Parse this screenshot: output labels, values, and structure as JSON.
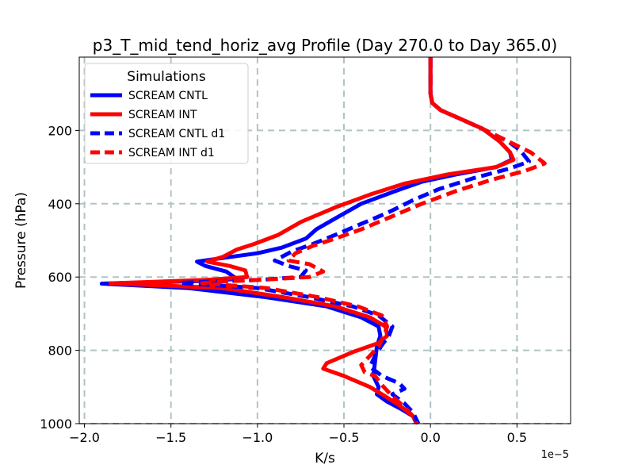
{
  "chart_data": {
    "type": "line",
    "title": "p3_T_mid_tend_horiz_avg Profile (Day 270.0 to Day 365.0)",
    "xlabel": "K/s",
    "ylabel": "Pressure (hPa)",
    "x_offset_label": "1e−5",
    "xlim": [
      -2.03,
      0.81
    ],
    "ylim": [
      1000,
      0
    ],
    "xticks": [
      -2.0,
      -1.5,
      -1.0,
      -0.5,
      0.0,
      0.5
    ],
    "xtick_labels": [
      "−2.0",
      "−1.5",
      "−1.0",
      "−0.5",
      "0.0",
      "0.5"
    ],
    "yticks": [
      200,
      400,
      600,
      800,
      1000
    ],
    "ytick_labels": [
      "200",
      "400",
      "600",
      "800",
      "1000"
    ],
    "grid": true,
    "legend": {
      "title": "Simulations",
      "location": "top-left",
      "entries": [
        "SCREAM CNTL",
        "SCREAM INT",
        "SCREAM CNTL d1",
        "SCREAM INT d1"
      ]
    },
    "series": [
      {
        "name": "SCREAM CNTL",
        "color": "#0000ff",
        "style": "solid",
        "points": [
          [
            0,
            0
          ],
          [
            0,
            50
          ],
          [
            0,
            100
          ],
          [
            0.01,
            125
          ],
          [
            0.06,
            145
          ],
          [
            0.18,
            170
          ],
          [
            0.3,
            195
          ],
          [
            0.4,
            230
          ],
          [
            0.46,
            260
          ],
          [
            0.47,
            280
          ],
          [
            0.38,
            300
          ],
          [
            0.15,
            320
          ],
          [
            -0.05,
            340
          ],
          [
            -0.2,
            365
          ],
          [
            -0.4,
            400
          ],
          [
            -0.55,
            440
          ],
          [
            -0.66,
            470
          ],
          [
            -0.72,
            495
          ],
          [
            -0.86,
            520
          ],
          [
            -1.0,
            535
          ],
          [
            -1.2,
            548
          ],
          [
            -1.35,
            558
          ],
          [
            -1.3,
            570
          ],
          [
            -1.18,
            585
          ],
          [
            -1.12,
            605
          ],
          [
            -1.25,
            610
          ],
          [
            -1.6,
            614
          ],
          [
            -1.9,
            618
          ],
          [
            -1.4,
            630
          ],
          [
            -0.95,
            655
          ],
          [
            -0.6,
            680
          ],
          [
            -0.4,
            710
          ],
          [
            -0.3,
            735
          ],
          [
            -0.29,
            760
          ],
          [
            -0.31,
            790
          ],
          [
            -0.32,
            830
          ],
          [
            -0.33,
            870
          ],
          [
            -0.3,
            900
          ],
          [
            -0.31,
            920
          ],
          [
            -0.25,
            940
          ],
          [
            -0.17,
            960
          ],
          [
            -0.1,
            980
          ],
          [
            -0.08,
            1000
          ]
        ]
      },
      {
        "name": "SCREAM INT",
        "color": "#ff0000",
        "style": "solid",
        "points": [
          [
            0,
            0
          ],
          [
            0,
            50
          ],
          [
            0,
            100
          ],
          [
            0.01,
            125
          ],
          [
            0.06,
            145
          ],
          [
            0.18,
            170
          ],
          [
            0.3,
            195
          ],
          [
            0.4,
            230
          ],
          [
            0.46,
            260
          ],
          [
            0.48,
            280
          ],
          [
            0.38,
            300
          ],
          [
            0.1,
            320
          ],
          [
            -0.15,
            345
          ],
          [
            -0.35,
            375
          ],
          [
            -0.55,
            410
          ],
          [
            -0.75,
            450
          ],
          [
            -0.88,
            485
          ],
          [
            -1.02,
            510
          ],
          [
            -1.12,
            525
          ],
          [
            -1.2,
            545
          ],
          [
            -1.29,
            558
          ],
          [
            -1.16,
            570
          ],
          [
            -1.07,
            582
          ],
          [
            -1.06,
            600
          ],
          [
            -1.3,
            608
          ],
          [
            -1.6,
            613
          ],
          [
            -1.85,
            617
          ],
          [
            -1.2,
            630
          ],
          [
            -0.85,
            655
          ],
          [
            -0.55,
            680
          ],
          [
            -0.35,
            710
          ],
          [
            -0.26,
            735
          ],
          [
            -0.25,
            760
          ],
          [
            -0.3,
            780
          ],
          [
            -0.45,
            805
          ],
          [
            -0.6,
            835
          ],
          [
            -0.62,
            850
          ],
          [
            -0.5,
            870
          ],
          [
            -0.35,
            900
          ],
          [
            -0.28,
            920
          ],
          [
            -0.18,
            950
          ],
          [
            -0.1,
            980
          ],
          [
            -0.07,
            1000
          ]
        ]
      },
      {
        "name": "SCREAM CNTL d1",
        "color": "#0000ff",
        "style": "dashed",
        "points": [
          [
            0,
            0
          ],
          [
            0,
            50
          ],
          [
            0,
            100
          ],
          [
            0.01,
            125
          ],
          [
            0.06,
            145
          ],
          [
            0.18,
            170
          ],
          [
            0.32,
            200
          ],
          [
            0.45,
            230
          ],
          [
            0.52,
            255
          ],
          [
            0.57,
            285
          ],
          [
            0.45,
            305
          ],
          [
            0.25,
            330
          ],
          [
            0.05,
            360
          ],
          [
            -0.1,
            390
          ],
          [
            -0.25,
            425
          ],
          [
            -0.4,
            455
          ],
          [
            -0.55,
            485
          ],
          [
            -0.68,
            510
          ],
          [
            -0.8,
            530
          ],
          [
            -0.9,
            555
          ],
          [
            -0.82,
            570
          ],
          [
            -0.72,
            582
          ],
          [
            -0.75,
            600
          ],
          [
            -1.0,
            608
          ],
          [
            -1.3,
            613
          ],
          [
            -1.45,
            616
          ],
          [
            -1.0,
            630
          ],
          [
            -0.7,
            655
          ],
          [
            -0.45,
            680
          ],
          [
            -0.3,
            705
          ],
          [
            -0.22,
            735
          ],
          [
            -0.24,
            760
          ],
          [
            -0.28,
            785
          ],
          [
            -0.32,
            815
          ],
          [
            -0.35,
            845
          ],
          [
            -0.28,
            870
          ],
          [
            -0.18,
            890
          ],
          [
            -0.15,
            905
          ],
          [
            -0.22,
            920
          ],
          [
            -0.15,
            945
          ],
          [
            -0.1,
            970
          ],
          [
            -0.07,
            1000
          ]
        ]
      },
      {
        "name": "SCREAM INT d1",
        "color": "#ff0000",
        "style": "dashed",
        "points": [
          [
            0,
            0
          ],
          [
            0,
            50
          ],
          [
            0,
            100
          ],
          [
            0.01,
            125
          ],
          [
            0.06,
            145
          ],
          [
            0.18,
            170
          ],
          [
            0.32,
            200
          ],
          [
            0.45,
            230
          ],
          [
            0.58,
            260
          ],
          [
            0.66,
            290
          ],
          [
            0.55,
            310
          ],
          [
            0.35,
            335
          ],
          [
            0.15,
            365
          ],
          [
            -0.05,
            400
          ],
          [
            -0.25,
            440
          ],
          [
            -0.4,
            470
          ],
          [
            -0.55,
            495
          ],
          [
            -0.68,
            515
          ],
          [
            -0.78,
            535
          ],
          [
            -0.82,
            555
          ],
          [
            -0.7,
            565
          ],
          [
            -0.62,
            585
          ],
          [
            -0.7,
            600
          ],
          [
            -1.0,
            608
          ],
          [
            -1.25,
            613
          ],
          [
            -1.32,
            617
          ],
          [
            -0.95,
            630
          ],
          [
            -0.65,
            655
          ],
          [
            -0.42,
            680
          ],
          [
            -0.28,
            705
          ],
          [
            -0.25,
            735
          ],
          [
            -0.27,
            760
          ],
          [
            -0.3,
            790
          ],
          [
            -0.35,
            815
          ],
          [
            -0.4,
            840
          ],
          [
            -0.38,
            860
          ],
          [
            -0.32,
            870
          ],
          [
            -0.28,
            895
          ],
          [
            -0.22,
            925
          ],
          [
            -0.15,
            955
          ],
          [
            -0.1,
            980
          ],
          [
            -0.08,
            1000
          ]
        ]
      }
    ]
  }
}
